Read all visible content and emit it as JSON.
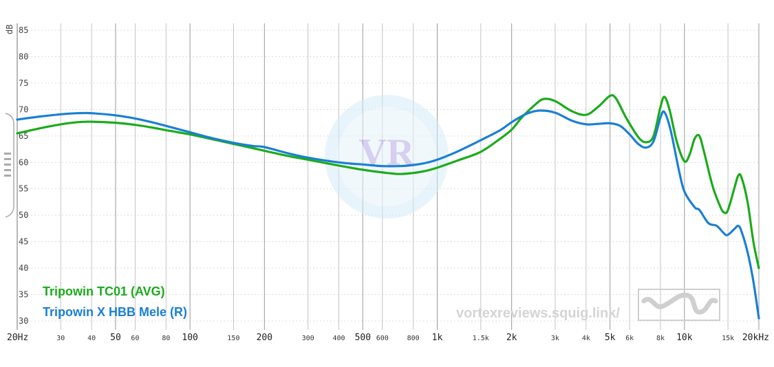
{
  "chart_data": {
    "type": "line",
    "xscale": "log",
    "xlim": [
      20,
      20000
    ],
    "ylim": [
      30,
      85
    ],
    "ylabel": "dB",
    "xlabel": "",
    "title": "",
    "grid": true,
    "legend_position": "bottom-left",
    "y_ticks": [
      "30",
      "35",
      "40",
      "45",
      "50",
      "55",
      "60",
      "65",
      "70",
      "75",
      "80",
      "85"
    ],
    "x_ticks": [
      {
        "v": 20,
        "label": "20Hz",
        "major": true
      },
      {
        "v": 30,
        "label": "30",
        "major": false
      },
      {
        "v": 40,
        "label": "40",
        "major": false
      },
      {
        "v": 50,
        "label": "50",
        "major": true
      },
      {
        "v": 60,
        "label": "60",
        "major": false
      },
      {
        "v": 80,
        "label": "80",
        "major": false
      },
      {
        "v": 100,
        "label": "100",
        "major": true
      },
      {
        "v": 150,
        "label": "150",
        "major": false
      },
      {
        "v": 200,
        "label": "200",
        "major": true
      },
      {
        "v": 300,
        "label": "300",
        "major": false
      },
      {
        "v": 400,
        "label": "400",
        "major": false
      },
      {
        "v": 500,
        "label": "500",
        "major": true
      },
      {
        "v": 600,
        "label": "600",
        "major": false
      },
      {
        "v": 800,
        "label": "800",
        "major": false
      },
      {
        "v": 1000,
        "label": "1k",
        "major": true
      },
      {
        "v": 1500,
        "label": "1.5k",
        "major": false
      },
      {
        "v": 2000,
        "label": "2k",
        "major": true
      },
      {
        "v": 3000,
        "label": "3k",
        "major": false
      },
      {
        "v": 4000,
        "label": "4k",
        "major": false
      },
      {
        "v": 5000,
        "label": "5k",
        "major": true
      },
      {
        "v": 6000,
        "label": "6k",
        "major": false
      },
      {
        "v": 8000,
        "label": "8k",
        "major": false
      },
      {
        "v": 10000,
        "label": "10k",
        "major": true
      },
      {
        "v": 15000,
        "label": "15k",
        "major": false
      },
      {
        "v": 20000,
        "label": "20kHz",
        "major": true
      }
    ],
    "series": [
      {
        "name": "Tripowin TC01 (AVG)",
        "color": "#1aab1a",
        "points": [
          [
            20,
            65.5
          ],
          [
            25,
            66.5
          ],
          [
            30,
            67.2
          ],
          [
            35,
            67.6
          ],
          [
            40,
            67.7
          ],
          [
            50,
            67.5
          ],
          [
            60,
            67.1
          ],
          [
            70,
            66.6
          ],
          [
            80,
            66.1
          ],
          [
            100,
            65.3
          ],
          [
            120,
            64.5
          ],
          [
            150,
            63.5
          ],
          [
            200,
            62.2
          ],
          [
            250,
            61.2
          ],
          [
            300,
            60.5
          ],
          [
            400,
            59.4
          ],
          [
            500,
            58.6
          ],
          [
            600,
            58.1
          ],
          [
            700,
            57.8
          ],
          [
            800,
            58.0
          ],
          [
            900,
            58.4
          ],
          [
            1000,
            59.0
          ],
          [
            1200,
            60.3
          ],
          [
            1500,
            62.0
          ],
          [
            1800,
            64.5
          ],
          [
            2000,
            66.2
          ],
          [
            2200,
            68.5
          ],
          [
            2500,
            71.0
          ],
          [
            2700,
            72.0
          ],
          [
            3000,
            71.6
          ],
          [
            3500,
            69.7
          ],
          [
            4000,
            69.0
          ],
          [
            4500,
            70.6
          ],
          [
            5000,
            72.6
          ],
          [
            5300,
            72.0
          ],
          [
            5800,
            68.5
          ],
          [
            6500,
            64.8
          ],
          [
            7000,
            63.8
          ],
          [
            7500,
            65.0
          ],
          [
            8000,
            70.5
          ],
          [
            8300,
            72.4
          ],
          [
            8700,
            70.0
          ],
          [
            9300,
            64.0
          ],
          [
            10000,
            60.2
          ],
          [
            10500,
            61.5
          ],
          [
            11000,
            64.5
          ],
          [
            11500,
            65.0
          ],
          [
            12000,
            62.0
          ],
          [
            13000,
            55.5
          ],
          [
            14000,
            51.5
          ],
          [
            14500,
            50.5
          ],
          [
            15000,
            51.0
          ],
          [
            16000,
            55.5
          ],
          [
            16500,
            57.5
          ],
          [
            17000,
            57.2
          ],
          [
            18000,
            52.5
          ],
          [
            19000,
            45.0
          ],
          [
            20000,
            40.0
          ]
        ]
      },
      {
        "name": "Tripowin X HBB Mele (R)",
        "color": "#1a7fd4",
        "points": [
          [
            20,
            68.1
          ],
          [
            25,
            68.7
          ],
          [
            30,
            69.1
          ],
          [
            35,
            69.3
          ],
          [
            40,
            69.3
          ],
          [
            50,
            68.9
          ],
          [
            60,
            68.3
          ],
          [
            70,
            67.6
          ],
          [
            80,
            66.9
          ],
          [
            100,
            65.7
          ],
          [
            120,
            64.7
          ],
          [
            150,
            63.7
          ],
          [
            180,
            63.1
          ],
          [
            200,
            62.9
          ],
          [
            250,
            61.7
          ],
          [
            300,
            60.9
          ],
          [
            400,
            60.0
          ],
          [
            500,
            59.6
          ],
          [
            600,
            59.3
          ],
          [
            700,
            59.3
          ],
          [
            800,
            59.5
          ],
          [
            900,
            59.9
          ],
          [
            1000,
            60.5
          ],
          [
            1200,
            62.0
          ],
          [
            1500,
            64.2
          ],
          [
            1800,
            66.1
          ],
          [
            2000,
            67.6
          ],
          [
            2300,
            69.2
          ],
          [
            2600,
            69.8
          ],
          [
            3000,
            69.4
          ],
          [
            3500,
            67.9
          ],
          [
            4000,
            67.2
          ],
          [
            4500,
            67.3
          ],
          [
            5000,
            67.4
          ],
          [
            5500,
            66.9
          ],
          [
            6000,
            65.3
          ],
          [
            6500,
            63.5
          ],
          [
            7000,
            62.8
          ],
          [
            7500,
            64.0
          ],
          [
            8000,
            68.5
          ],
          [
            8300,
            69.5
          ],
          [
            8800,
            66.0
          ],
          [
            9500,
            58.5
          ],
          [
            10000,
            54.5
          ],
          [
            11000,
            51.5
          ],
          [
            11500,
            51.0
          ],
          [
            12500,
            48.5
          ],
          [
            13500,
            48.0
          ],
          [
            14500,
            46.5
          ],
          [
            15000,
            46.3
          ],
          [
            16000,
            47.5
          ],
          [
            16500,
            48.0
          ],
          [
            17000,
            47.0
          ],
          [
            18000,
            43.0
          ],
          [
            19000,
            37.5
          ],
          [
            20000,
            30.5
          ]
        ]
      }
    ]
  },
  "watermark": {
    "site_text": "vortexreviews.squig.link/",
    "logo_letters": "VR"
  }
}
